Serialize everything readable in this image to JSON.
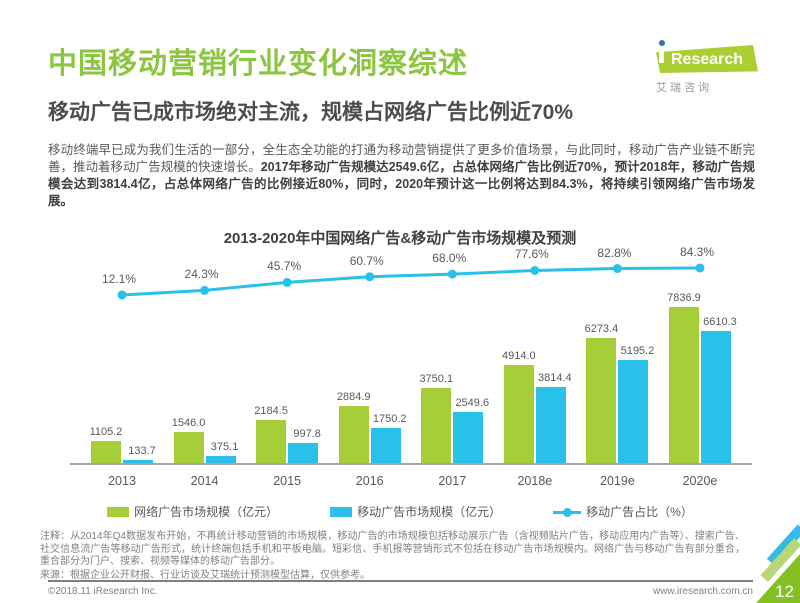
{
  "header": {
    "title": "中国移动营销行业变化洞察综述",
    "subtitle": "移动广告已成市场绝对主流，规模占网络广告比例近70%",
    "logo": {
      "brand_text": "Research",
      "subtext_chars": "艾 瑞 咨 询"
    }
  },
  "body": {
    "normal": "移动终端早已成为我们生活的一部分，全生态全功能的打通为移动营销提供了更多价值场景，与此同时，移动广告产业链不断完善，推动着移动广告规模的快速增长。",
    "bold": "2017年移动广告规模达2549.6亿，占总体网络广告比例近70%，预计2018年，移动广告规模会达到3814.4亿，占总体网络广告的比例接近80%，同时，2020年预计这一比例将达到84.3%，将持续引领网络广告市场发展。"
  },
  "chart_data": {
    "type": "bar",
    "title": "2013-2020年中国网络广告&移动广告市场规模及预测",
    "categories": [
      "2013",
      "2014",
      "2015",
      "2016",
      "2017",
      "2018e",
      "2019e",
      "2020e"
    ],
    "series": [
      {
        "name": "网络广告市场规模（亿元）",
        "type": "bar",
        "color": "#a5ce38",
        "values": [
          1105.2,
          1546.0,
          2184.5,
          2884.9,
          3750.1,
          4914.0,
          6273.4,
          7836.9
        ],
        "labels": [
          "1105.2",
          "1546.0",
          "2184.5",
          "2884.9",
          "3750.1",
          "4914.0",
          "6273.4",
          "7836.9"
        ]
      },
      {
        "name": "移动广告市场规模（亿元）",
        "type": "bar",
        "color": "#29c1e9",
        "values": [
          133.7,
          375.1,
          997.8,
          1750.2,
          2549.6,
          3814.4,
          5195.2,
          6610.3
        ],
        "labels": [
          "133.7",
          "375.1",
          "997.8",
          "1750.2",
          "2549.6",
          "3814.4",
          "5195.2",
          "6610.3"
        ]
      },
      {
        "name": "移动广告占比（%）",
        "type": "line",
        "color": "#29c1e9",
        "values": [
          12.1,
          24.3,
          45.7,
          60.7,
          68.0,
          77.6,
          82.8,
          84.3
        ],
        "labels": [
          "12.1%",
          "24.3%",
          "45.7%",
          "60.7%",
          "68.0%",
          "77.6%",
          "82.8%",
          "84.3%"
        ]
      }
    ],
    "ylim": [
      0,
      8000
    ],
    "grid": false,
    "legend_position": "bottom"
  },
  "footnote": {
    "note": "注释：从2014年Q4数据发布开始，不再统计移动营销的市场规模，移动广告的市场规模包括移动展示广告（含视频贴片广告，移动应用内广告等）、搜索广告、社交信息流广告等移动广告形式，统计终端包括手机和平板电脑。短彩信、手机报等营销形式不包括在移动广告市场规模内。网络广告与移动广告有部分重合，重合部分为门户、搜索、视频等媒体的移动广告部分。",
    "source": "来源：根据企业公开财报、行业访谈及艾瑞统计预测模型估算，仅供参考。"
  },
  "footer": {
    "copyright": "©2018.11  iResearch Inc.",
    "website": "www.iresearch.com.cn",
    "page_number": "12"
  },
  "colors": {
    "brand_green": "#8cc63f",
    "logo_green": "#a9cf32",
    "logo_dot_blue": "#3272b5",
    "chart_green": "#a5ce38",
    "chart_blue": "#29c1e9",
    "corner_green": "#83c122",
    "corner_light_green": "#b7d878",
    "corner_blue": "#35b9e6"
  }
}
